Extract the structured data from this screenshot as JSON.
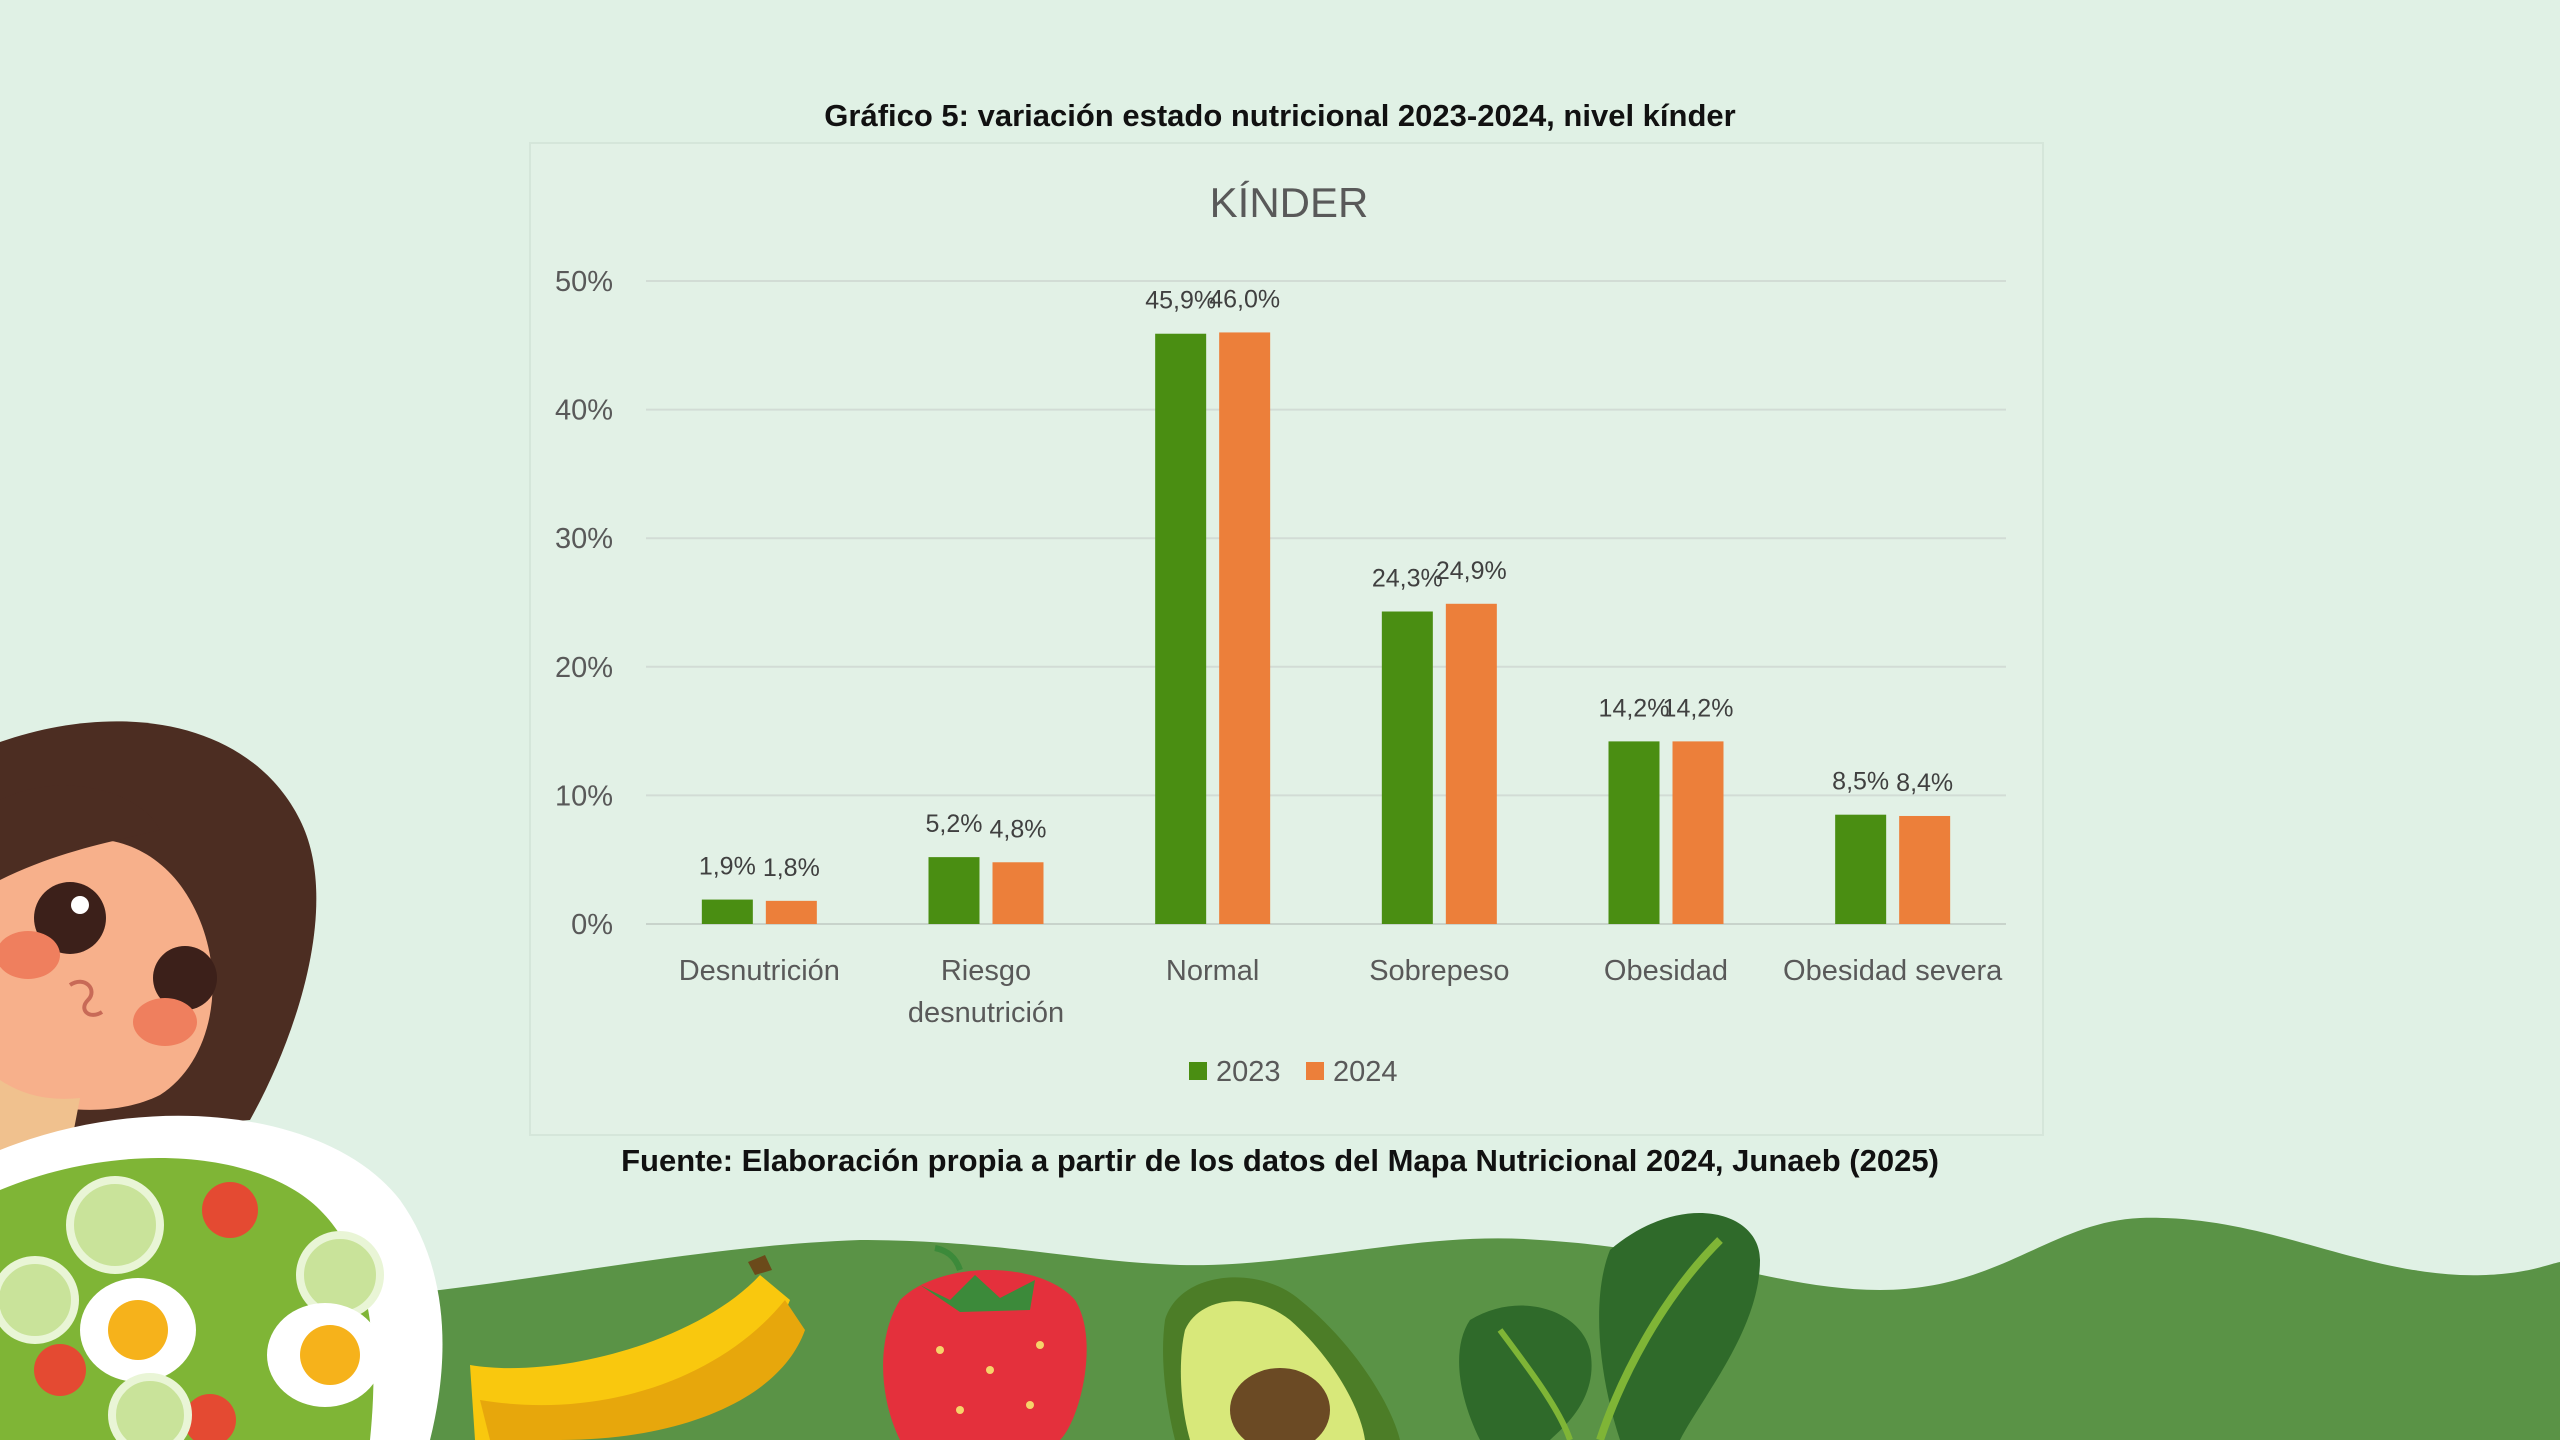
{
  "figure": {
    "caption_top": "Gráfico 5: variación estado nutricional 2023-2024, nivel kínder",
    "caption_bottom": "Fuente: Elaboración propia a partir de los datos del Mapa Nutricional 2024, Junaeb (2025)"
  },
  "colors": {
    "background": "#e0f1e5",
    "series_2023": "#4a8e12",
    "series_2024": "#ec7f3a",
    "ground": "#5a9346"
  },
  "chart_data": {
    "type": "bar",
    "title": "KÍNDER",
    "categories": [
      "Desnutrición",
      "Riesgo desnutrición",
      "Normal",
      "Sobrepeso",
      "Obesidad",
      "Obesidad severa"
    ],
    "category_lines": [
      [
        "Desnutrición"
      ],
      [
        "Riesgo",
        "desnutrición"
      ],
      [
        "Normal"
      ],
      [
        "Sobrepeso"
      ],
      [
        "Obesidad"
      ],
      [
        "Obesidad severa"
      ]
    ],
    "series": [
      {
        "name": "2023",
        "values": [
          1.9,
          5.2,
          45.9,
          24.3,
          14.2,
          8.5
        ],
        "labels": [
          "1,9%",
          "5,2%",
          "45,9%",
          "24,3%",
          "14,2%",
          "8,5%"
        ]
      },
      {
        "name": "2024",
        "values": [
          1.8,
          4.8,
          46.0,
          24.9,
          14.2,
          8.4
        ],
        "labels": [
          "1,8%",
          "4,8%",
          "46,0%",
          "24,9%",
          "14,2%",
          "8,4%"
        ]
      }
    ],
    "yticks": [
      "0%",
      "10%",
      "20%",
      "30%",
      "40%",
      "50%"
    ],
    "ylim": [
      0,
      50
    ],
    "xlabel": "",
    "ylabel": "",
    "grid": true,
    "legend": "bottom"
  },
  "illustrations": [
    "girl",
    "salad-bowl",
    "banana",
    "strawberry",
    "avocado",
    "spinach"
  ]
}
